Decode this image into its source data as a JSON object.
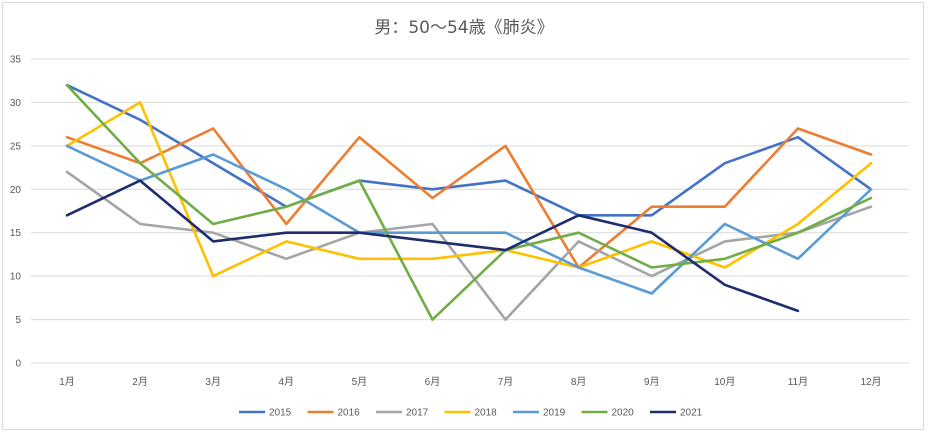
{
  "chart_data": {
    "type": "line",
    "title": "男：50～54歳《肺炎》",
    "xlabel": "",
    "ylabel": "",
    "categories": [
      "1月",
      "2月",
      "3月",
      "4月",
      "5月",
      "6月",
      "7月",
      "8月",
      "9月",
      "10月",
      "11月",
      "12月"
    ],
    "ylim": [
      0,
      35
    ],
    "yticks": [
      0,
      5,
      10,
      15,
      20,
      25,
      30,
      35
    ],
    "grid": true,
    "legend_position": "bottom",
    "series": [
      {
        "name": "2015",
        "color": "#4472c4",
        "values": [
          32,
          28,
          23,
          18,
          21,
          20,
          21,
          17,
          17,
          23,
          26,
          20
        ]
      },
      {
        "name": "2016",
        "color": "#ed7d31",
        "values": [
          26,
          23,
          27,
          16,
          26,
          19,
          25,
          11,
          18,
          18,
          27,
          24
        ]
      },
      {
        "name": "2017",
        "color": "#a5a5a5",
        "values": [
          22,
          16,
          15,
          12,
          15,
          16,
          5,
          14,
          10,
          14,
          15,
          18
        ]
      },
      {
        "name": "2018",
        "color": "#ffc000",
        "values": [
          25,
          30,
          10,
          14,
          12,
          12,
          13,
          11,
          14,
          11,
          16,
          23
        ]
      },
      {
        "name": "2019",
        "color": "#5b9bd5",
        "values": [
          25,
          21,
          24,
          20,
          15,
          15,
          15,
          11,
          8,
          16,
          12,
          20
        ]
      },
      {
        "name": "2020",
        "color": "#70ad47",
        "values": [
          32,
          23,
          16,
          18,
          21,
          5,
          13,
          15,
          11,
          12,
          15,
          19
        ]
      },
      {
        "name": "2021",
        "color": "#1f2d6e",
        "values": [
          17,
          21,
          14,
          15,
          15,
          14,
          13,
          17,
          15,
          9,
          6,
          null
        ]
      }
    ]
  }
}
